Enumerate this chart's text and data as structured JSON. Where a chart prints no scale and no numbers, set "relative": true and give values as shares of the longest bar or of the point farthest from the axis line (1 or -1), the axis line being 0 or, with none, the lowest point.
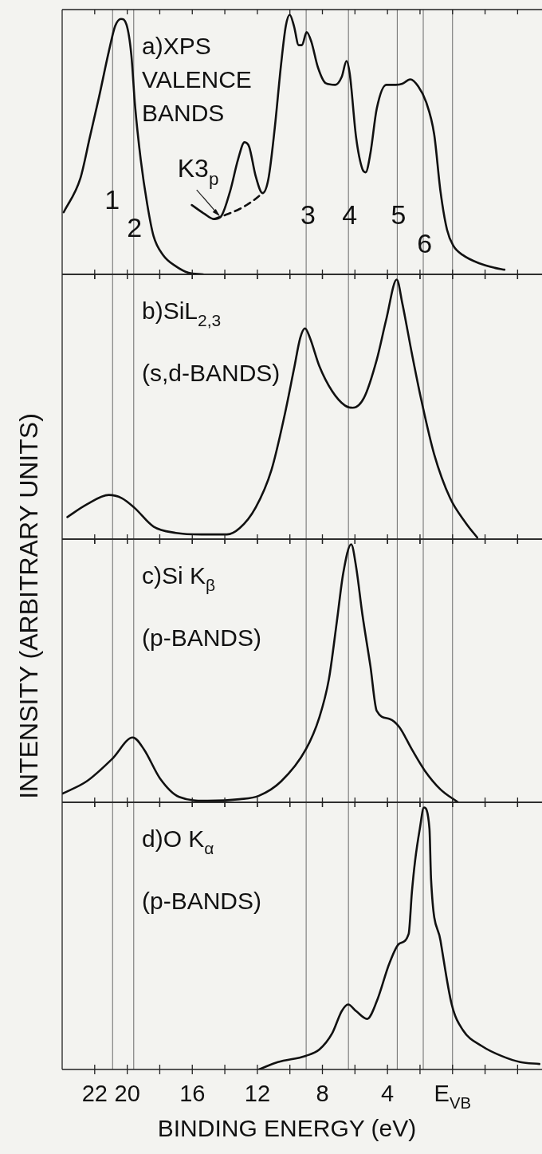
{
  "chart_data": [
    {
      "type": "line",
      "title": "a)XPS VALENCE BANDS",
      "ylabel": "INTENSITY (ARBITRARY UNITS)",
      "relative": true,
      "xlim": [
        24,
        -5.5
      ],
      "xticks": [
        {
          "value": 22,
          "label": null
        },
        {
          "value": 20,
          "label": null
        },
        {
          "value": 18,
          "label": null
        },
        {
          "value": 16,
          "label": null
        },
        {
          "value": 14,
          "label": null
        },
        {
          "value": 12,
          "label": null
        },
        {
          "value": 10,
          "label": null
        },
        {
          "value": 8,
          "label": null
        },
        {
          "value": 6,
          "label": null
        },
        {
          "value": 4,
          "label": null
        },
        {
          "value": 2,
          "label": null
        },
        {
          "value": 0,
          "label": null
        },
        {
          "value": -2,
          "label": null
        },
        {
          "value": -4,
          "label": null
        }
      ],
      "tick_labels": false,
      "series": [
        {
          "color": "#111111",
          "x": [
            23.91,
            22.89,
            22.3,
            21.72,
            21.13,
            20.74,
            20.38,
            20.05,
            19.75,
            19.52,
            19.17,
            18.77,
            18.38,
            17.79,
            17.01,
            16.23,
            15.34
          ],
          "values": [
            0.239,
            0.368,
            0.528,
            0.687,
            0.859,
            0.957,
            0.984,
            0.963,
            0.847,
            0.65,
            0.442,
            0.27,
            0.147,
            0.074,
            0.031,
            0.006,
            0
          ]
        },
        {
          "color": "#111111",
          "x": [
            16.03,
            15.25,
            14.66,
            14.26,
            13.68,
            13.19,
            12.79,
            12.5,
            12.11,
            11.68,
            11.32,
            10.93,
            10.54,
            10.25,
            10.01,
            9.75,
            9.46,
            9.26,
            8.97,
            8.68,
            8.28,
            7.79,
            7.21,
            6.81,
            6.52,
            6.32,
            5.93,
            5.54,
            5.34,
            5.05,
            4.66,
            4.07,
            3.48,
            3.09,
            2.6,
            2.11,
            1.62,
            1.13,
            0.74,
            0.34,
            -0.05,
            -0.64,
            -1.62,
            -2.6,
            -3.19
          ],
          "values": [
            0.267,
            0.233,
            0.213,
            0.221,
            0.319,
            0.442,
            0.509,
            0.491,
            0.38,
            0.313,
            0.368,
            0.564,
            0.81,
            0.957,
            1,
            0.957,
            0.883,
            0.883,
            0.933,
            0.896,
            0.798,
            0.736,
            0.73,
            0.761,
            0.822,
            0.773,
            0.528,
            0.405,
            0.393,
            0.466,
            0.638,
            0.73,
            0.73,
            0.734,
            0.751,
            0.724,
            0.663,
            0.54,
            0.319,
            0.172,
            0.11,
            0.074,
            0.043,
            0.025,
            0.018
          ]
        },
        {
          "color": "#111111",
          "line_style": "dashed",
          "x": [
            14.66,
            13.87,
            13.09,
            12.3,
            11.68
          ],
          "values": [
            0.213,
            0.231,
            0.252,
            0.282,
            0.313
          ]
        }
      ],
      "ref_lines": [
        {
          "axis": "x",
          "value": 20.9
        },
        {
          "axis": "x",
          "value": 19.6
        },
        {
          "axis": "x",
          "value": 9.0
        },
        {
          "axis": "x",
          "value": 6.4
        },
        {
          "axis": "x",
          "value": 3.4
        },
        {
          "axis": "x",
          "value": 1.8
        },
        {
          "axis": "x",
          "value": 0
        }
      ],
      "annotations": [
        {
          "text": "K3$_{p}$",
          "x": 14.26,
          "y": 0.221
        },
        {
          "text": "1",
          "x": 20.93,
          "y": 0.29
        },
        {
          "text": "2",
          "x": 19.56,
          "y": 0.18
        },
        {
          "text": "3",
          "x": 8.88,
          "y": 0.23
        },
        {
          "text": "4",
          "x": 6.32,
          "y": 0.23
        },
        {
          "text": "5",
          "x": 3.32,
          "y": 0.23
        },
        {
          "text": "6",
          "x": 1.72,
          "y": 0.12
        }
      ]
    },
    {
      "type": "line",
      "title": "b)SiL$_{2,3}$",
      "subtitle": "(s,d-BANDS)",
      "relative": true,
      "xlim": [
        24,
        -5.5
      ],
      "xticks": [
        {
          "value": 22,
          "label": null
        },
        {
          "value": 20,
          "label": null
        },
        {
          "value": 18,
          "label": null
        },
        {
          "value": 16,
          "label": null
        },
        {
          "value": 14,
          "label": null
        },
        {
          "value": 12,
          "label": null
        },
        {
          "value": 10,
          "label": null
        },
        {
          "value": 8,
          "label": null
        },
        {
          "value": 6,
          "label": null
        },
        {
          "value": 4,
          "label": null
        },
        {
          "value": 2,
          "label": null
        },
        {
          "value": 0,
          "label": null
        },
        {
          "value": -2,
          "label": null
        },
        {
          "value": -4,
          "label": null
        }
      ],
      "tick_labels": false,
      "series": [
        {
          "color": "#111111",
          "x": [
            23.68,
            22.5,
            21.13,
            20.34,
            19.56,
            18.38,
            17.01,
            15.44,
            13.87,
            13.09,
            12.11,
            11.13,
            10.34,
            9.75,
            9.36,
            9.07,
            8.77,
            8.19,
            7.4,
            6.62,
            6.13,
            5.44,
            4.66,
            4.07,
            3.43,
            3.09,
            2.5,
            1.91,
            1.13,
            0.15,
            -0.83,
            -1.52
          ],
          "values": [
            0.085,
            0.133,
            0.17,
            0.158,
            0.121,
            0.048,
            0.024,
            0.018,
            0.018,
            0.042,
            0.121,
            0.267,
            0.473,
            0.655,
            0.776,
            0.812,
            0.776,
            0.667,
            0.57,
            0.515,
            0.506,
            0.545,
            0.691,
            0.848,
            1,
            0.909,
            0.715,
            0.533,
            0.327,
            0.158,
            0.061,
            0.006
          ]
        }
      ],
      "ref_lines": [
        {
          "axis": "x",
          "value": 20.9
        },
        {
          "axis": "x",
          "value": 19.6
        },
        {
          "axis": "x",
          "value": 9.0
        },
        {
          "axis": "x",
          "value": 6.4
        },
        {
          "axis": "x",
          "value": 3.4
        },
        {
          "axis": "x",
          "value": 1.8
        },
        {
          "axis": "x",
          "value": 0
        }
      ]
    },
    {
      "type": "line",
      "title": "c)Si K$_{β}$",
      "subtitle": "(p-BANDS)",
      "relative": true,
      "xlim": [
        24,
        -5.5
      ],
      "xticks": [
        {
          "value": 22,
          "label": null
        },
        {
          "value": 20,
          "label": null
        },
        {
          "value": 18,
          "label": null
        },
        {
          "value": 16,
          "label": null
        },
        {
          "value": 14,
          "label": null
        },
        {
          "value": 12,
          "label": null
        },
        {
          "value": 10,
          "label": null
        },
        {
          "value": 8,
          "label": null
        },
        {
          "value": 6,
          "label": null
        },
        {
          "value": 4,
          "label": null
        },
        {
          "value": 2,
          "label": null
        },
        {
          "value": 0,
          "label": null
        },
        {
          "value": -2,
          "label": null
        },
        {
          "value": -4,
          "label": null
        }
      ],
      "tick_labels": false,
      "series": [
        {
          "color": "#111111",
          "x": [
            23.97,
            22.5,
            20.93,
            19.66,
            18.97,
            17.99,
            16.81,
            15.05,
            13.09,
            11.91,
            10.54,
            9.02,
            8.19,
            7.6,
            7.11,
            6.72,
            6.23,
            5.93,
            5.54,
            5.05,
            4.66,
            3.87,
            3.28,
            2.5,
            1.72,
            0.74,
            -0.34
          ],
          "values": [
            0.034,
            0.081,
            0.168,
            0.251,
            0.205,
            0.093,
            0.021,
            0.006,
            0.012,
            0.025,
            0.081,
            0.205,
            0.329,
            0.478,
            0.702,
            0.888,
            1,
            0.913,
            0.727,
            0.528,
            0.354,
            0.323,
            0.292,
            0.205,
            0.124,
            0.05,
            0
          ]
        }
      ],
      "ref_lines": [
        {
          "axis": "x",
          "value": 20.9
        },
        {
          "axis": "x",
          "value": 19.6
        },
        {
          "axis": "x",
          "value": 9.0
        },
        {
          "axis": "x",
          "value": 6.4
        },
        {
          "axis": "x",
          "value": 3.4
        },
        {
          "axis": "x",
          "value": 1.8
        },
        {
          "axis": "x",
          "value": 0
        }
      ]
    },
    {
      "type": "line",
      "title": "d)O K$_{α}$",
      "subtitle": "(p-BANDS)",
      "xlabel": "BINDING ENERGY (eV)",
      "relative": true,
      "xlim": [
        24,
        -5.5
      ],
      "xticks": [
        22,
        20,
        {
          "value": 18,
          "label": null
        },
        16,
        {
          "value": 14,
          "label": null
        },
        12,
        {
          "value": 10,
          "label": null
        },
        8,
        {
          "value": 6,
          "label": null
        },
        4,
        {
          "value": 2,
          "label": null
        },
        {
          "value": 0,
          "label": "E$_{VB}$"
        },
        {
          "value": -2,
          "label": null
        },
        {
          "value": -4,
          "label": null
        }
      ],
      "tick_labels": "x",
      "series": [
        {
          "color": "#111111",
          "x": [
            11.91,
            10.74,
            9.02,
            8.19,
            7.4,
            6.81,
            6.42,
            5.93,
            5.25,
            4.66,
            3.87,
            3.28,
            2.7,
            2.5,
            2.3,
            2.01,
            1.76,
            1.42,
            1.32,
            0.74,
            0.05,
            -0.64,
            -1.81,
            -2.99,
            -4.17,
            -5.34
          ],
          "values": [
            0,
            0.028,
            0.052,
            0.076,
            0.138,
            0.223,
            0.248,
            0.223,
            0.193,
            0.26,
            0.407,
            0.48,
            0.517,
            0.676,
            0.798,
            0.92,
            1,
            0.92,
            0.725,
            0.492,
            0.248,
            0.15,
            0.089,
            0.052,
            0.028,
            0.021
          ]
        }
      ],
      "ref_lines": [
        {
          "axis": "x",
          "value": 20.9
        },
        {
          "axis": "x",
          "value": 19.6
        },
        {
          "axis": "x",
          "value": 9.0
        },
        {
          "axis": "x",
          "value": 6.4
        },
        {
          "axis": "x",
          "value": 3.4
        },
        {
          "axis": "x",
          "value": 1.8
        },
        {
          "axis": "x",
          "value": 0
        }
      ]
    }
  ]
}
